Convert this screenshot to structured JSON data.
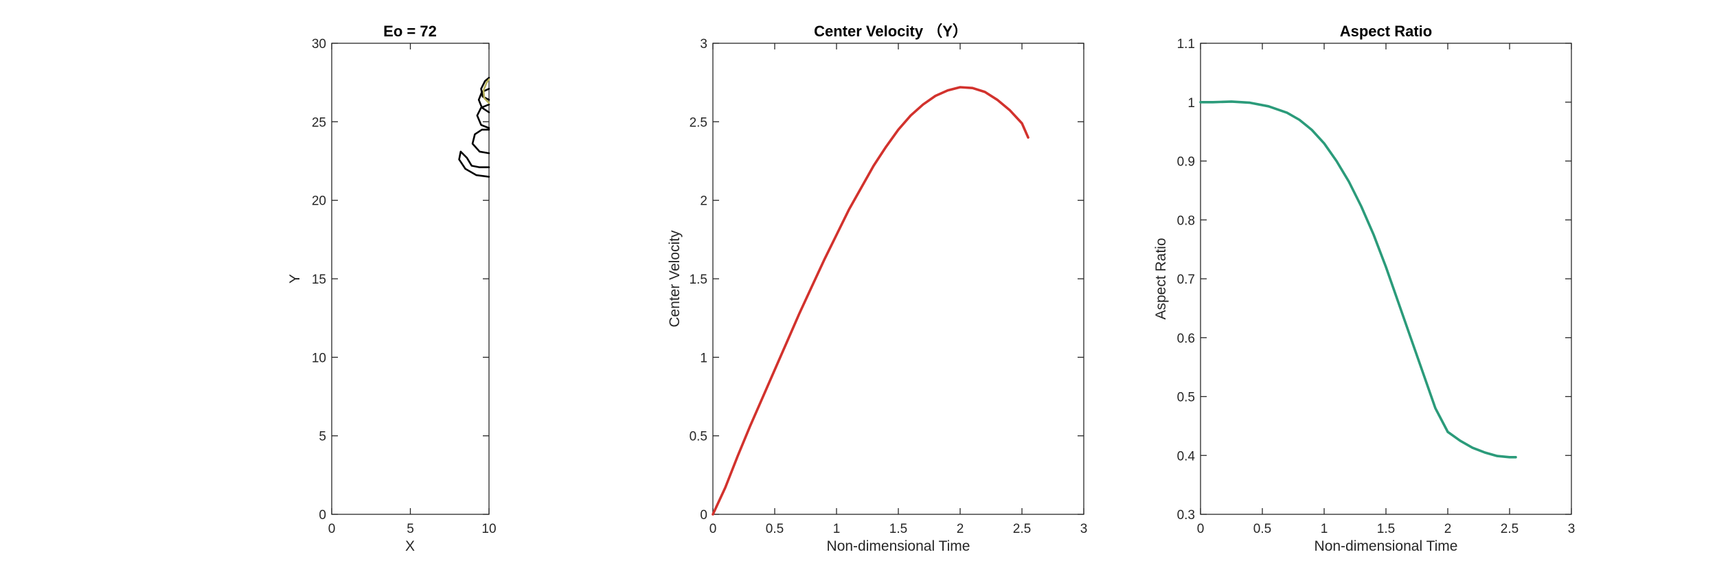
{
  "chart_data": [
    {
      "type": "line",
      "title": "Eo = 72",
      "xlabel": "X",
      "ylabel": "Y",
      "xlim": [
        0,
        10
      ],
      "ylim": [
        0,
        30
      ],
      "xticks": [
        0,
        5,
        10
      ],
      "xtick_labels": [
        "0",
        "5",
        "10"
      ],
      "yticks": [
        0,
        5,
        10,
        15,
        20,
        25,
        30
      ],
      "ytick_labels": [
        "0",
        "5",
        "10",
        "15",
        "20",
        "25",
        "30"
      ],
      "grid": false,
      "series": [
        {
          "color": "#000000",
          "points": [
            [
              10,
              21.5
            ],
            [
              9.2,
              21.6
            ],
            [
              8.5,
              22.0
            ],
            [
              8.1,
              22.6
            ],
            [
              8.2,
              23.1
            ],
            [
              8.6,
              22.7
            ],
            [
              8.9,
              22.2
            ],
            [
              9.4,
              22.1
            ],
            [
              10,
              22.1
            ]
          ]
        },
        {
          "color": "#000000",
          "points": [
            [
              10,
              23.0
            ],
            [
              9.4,
              23.1
            ],
            [
              8.95,
              23.6
            ],
            [
              9.1,
              24.2
            ],
            [
              9.55,
              24.5
            ],
            [
              10,
              24.5
            ]
          ]
        },
        {
          "color": "#000000",
          "points": [
            [
              10,
              24.6
            ],
            [
              9.5,
              24.8
            ],
            [
              9.25,
              25.4
            ],
            [
              9.5,
              25.9
            ],
            [
              10,
              26.1
            ]
          ]
        },
        {
          "color": "#000000",
          "points": [
            [
              10,
              25.6
            ],
            [
              9.55,
              25.9
            ],
            [
              9.35,
              26.4
            ],
            [
              9.55,
              26.9
            ],
            [
              10,
              27.1
            ]
          ]
        },
        {
          "color": "#000000",
          "points": [
            [
              10,
              26.4
            ],
            [
              9.6,
              26.6
            ],
            [
              9.5,
              27.1
            ],
            [
              9.75,
              27.6
            ],
            [
              10,
              27.8
            ]
          ]
        },
        {
          "color": "#b8b25a",
          "points": [
            [
              10,
              26.2
            ],
            [
              9.7,
              26.5
            ],
            [
              9.65,
              27.0
            ],
            [
              9.85,
              27.5
            ],
            [
              10,
              27.7
            ]
          ]
        }
      ]
    },
    {
      "type": "line",
      "title": "Center Velocity （Y）",
      "xlabel": "Non-dimensional Time",
      "ylabel": "Center Velocity",
      "xlim": [
        0,
        3
      ],
      "ylim": [
        0,
        3
      ],
      "xticks": [
        0,
        0.5,
        1,
        1.5,
        2,
        2.5,
        3
      ],
      "xtick_labels": [
        "0",
        "0.5",
        "1",
        "1.5",
        "2",
        "2.5",
        "3"
      ],
      "yticks": [
        0,
        0.5,
        1,
        1.5,
        2,
        2.5,
        3
      ],
      "ytick_labels": [
        "0",
        "0.5",
        "1",
        "1.5",
        "2",
        "2.5",
        "3"
      ],
      "grid": false,
      "series": [
        {
          "color": "#d2322d",
          "points": [
            [
              0,
              0
            ],
            [
              0.1,
              0.17
            ],
            [
              0.2,
              0.37
            ],
            [
              0.3,
              0.56
            ],
            [
              0.4,
              0.74
            ],
            [
              0.5,
              0.92
            ],
            [
              0.6,
              1.1
            ],
            [
              0.7,
              1.28
            ],
            [
              0.8,
              1.45
            ],
            [
              0.9,
              1.62
            ],
            [
              1.0,
              1.78
            ],
            [
              1.1,
              1.94
            ],
            [
              1.2,
              2.08
            ],
            [
              1.3,
              2.22
            ],
            [
              1.4,
              2.34
            ],
            [
              1.5,
              2.45
            ],
            [
              1.6,
              2.54
            ],
            [
              1.7,
              2.61
            ],
            [
              1.8,
              2.665
            ],
            [
              1.9,
              2.7
            ],
            [
              2.0,
              2.72
            ],
            [
              2.1,
              2.715
            ],
            [
              2.2,
              2.69
            ],
            [
              2.3,
              2.64
            ],
            [
              2.4,
              2.575
            ],
            [
              2.5,
              2.49
            ],
            [
              2.55,
              2.4
            ]
          ]
        }
      ]
    },
    {
      "type": "line",
      "title": "Aspect Ratio",
      "xlabel": "Non-dimensional Time",
      "ylabel": "Aspect Ratio",
      "xlim": [
        0,
        3
      ],
      "ylim": [
        0.3,
        1.1
      ],
      "xticks": [
        0,
        0.5,
        1,
        1.5,
        2,
        2.5,
        3
      ],
      "xtick_labels": [
        "0",
        "0.5",
        "1",
        "1.5",
        "2",
        "2.5",
        "3"
      ],
      "yticks": [
        0.3,
        0.4,
        0.5,
        0.6,
        0.7,
        0.8,
        0.9,
        1,
        1.1
      ],
      "ytick_labels": [
        "0.3",
        "0.4",
        "0.5",
        "0.6",
        "0.7",
        "0.8",
        "0.9",
        "1",
        "1.1"
      ],
      "grid": false,
      "series": [
        {
          "color": "#2b9b7a",
          "points": [
            [
              0,
              1.0
            ],
            [
              0.1,
              1.0
            ],
            [
              0.25,
              1.001
            ],
            [
              0.4,
              0.999
            ],
            [
              0.55,
              0.993
            ],
            [
              0.7,
              0.982
            ],
            [
              0.8,
              0.97
            ],
            [
              0.9,
              0.953
            ],
            [
              1.0,
              0.93
            ],
            [
              1.1,
              0.9
            ],
            [
              1.2,
              0.865
            ],
            [
              1.3,
              0.823
            ],
            [
              1.4,
              0.775
            ],
            [
              1.5,
              0.72
            ],
            [
              1.6,
              0.66
            ],
            [
              1.7,
              0.6
            ],
            [
              1.8,
              0.54
            ],
            [
              1.9,
              0.48
            ],
            [
              2.0,
              0.44
            ],
            [
              2.1,
              0.425
            ],
            [
              2.2,
              0.413
            ],
            [
              2.3,
              0.405
            ],
            [
              2.4,
              0.399
            ],
            [
              2.5,
              0.397
            ],
            [
              2.55,
              0.397
            ]
          ]
        }
      ]
    }
  ]
}
